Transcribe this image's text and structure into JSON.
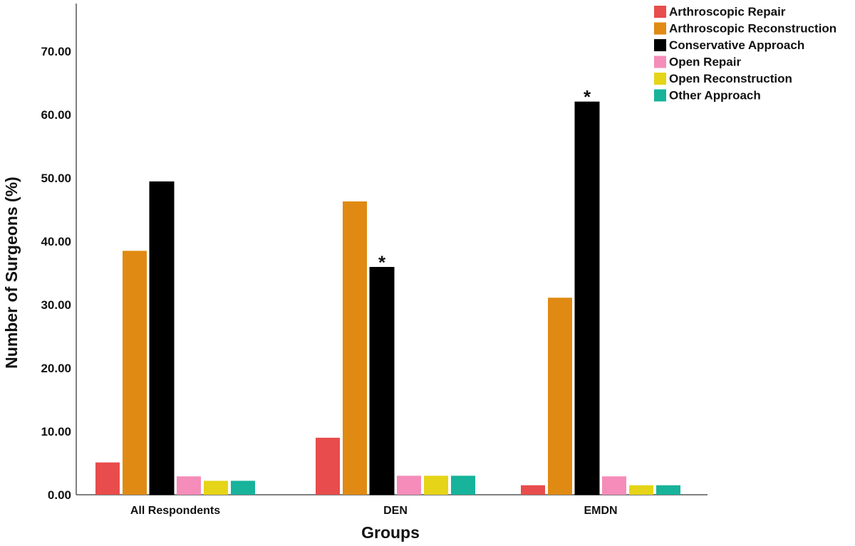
{
  "chart_data": {
    "type": "bar",
    "title": "",
    "xlabel": "Groups",
    "ylabel": "Number of Surgeons (%)",
    "ylim": [
      0,
      77
    ],
    "yticks": [
      "0.00",
      "10.00",
      "20.00",
      "30.00",
      "40.00",
      "50.00",
      "60.00",
      "70.00"
    ],
    "categories": [
      "All Respondents",
      "DEN",
      "EMDN"
    ],
    "series": [
      {
        "name": "Arthroscopic Repair",
        "color": "#e84c4c",
        "values": [
          5.1,
          9.0,
          1.5
        ]
      },
      {
        "name": "Arthroscopic Reconstruction",
        "color": "#e08a13",
        "values": [
          38.5,
          46.3,
          31.1
        ]
      },
      {
        "name": "Conservative Approach",
        "color": "#000000",
        "values": [
          49.4,
          35.9,
          62.0
        ]
      },
      {
        "name": "Open Repair",
        "color": "#f58cb9",
        "values": [
          2.9,
          3.0,
          2.9
        ]
      },
      {
        "name": "Open Reconstruction",
        "color": "#e5d417",
        "values": [
          2.2,
          3.0,
          1.5
        ]
      },
      {
        "name": "Other Approach",
        "color": "#17b39b",
        "values": [
          2.2,
          3.0,
          1.5
        ]
      }
    ],
    "annotations": [
      {
        "text": "*",
        "series": "Conservative Approach",
        "category": "DEN"
      },
      {
        "text": "*",
        "series": "Conservative Approach",
        "category": "EMDN"
      }
    ],
    "legend": "top-right",
    "grid": false
  }
}
